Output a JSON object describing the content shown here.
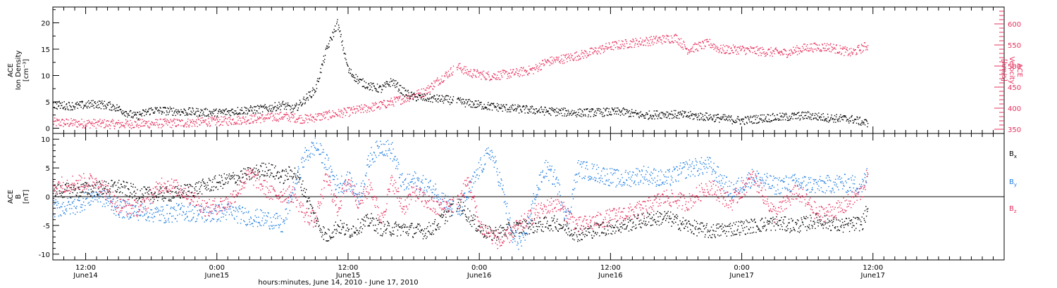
{
  "figure": {
    "xlabel": "hours:minutes, June 14, 2010 - June 17, 2010",
    "time_range_hours": [
      -3,
      84
    ],
    "time_ticks": [
      {
        "hours": 0,
        "time": "12:00",
        "date": "June14"
      },
      {
        "hours": 12,
        "time": "0:00",
        "date": "June15"
      },
      {
        "hours": 24,
        "time": "12:00",
        "date": "June15"
      },
      {
        "hours": 36,
        "time": "0:00",
        "date": "June16"
      },
      {
        "hours": 48,
        "time": "12:00",
        "date": "June16"
      },
      {
        "hours": 60,
        "time": "0:00",
        "date": "June17"
      },
      {
        "hours": 72,
        "time": "12:00",
        "date": "June17"
      }
    ]
  },
  "chart_data": [
    {
      "type": "scatter",
      "panel": "top",
      "ylabel_left": [
        "ACE",
        "Ion Density",
        "[cm⁻³]"
      ],
      "ylabel_right": [
        "ACE",
        "Velocity",
        "[km/s]"
      ],
      "ylim_left": [
        -1,
        23
      ],
      "ylim_right": [
        340,
        640
      ],
      "yticks_left": [
        0,
        5,
        10,
        15,
        20
      ],
      "yticks_right": [
        350,
        400,
        450,
        500,
        550,
        600
      ],
      "colors": {
        "density": "#000000",
        "velocity": "#e8305e"
      },
      "series": [
        {
          "key": "density",
          "axis": "left",
          "points": [
            [
              -3,
              4.5
            ],
            [
              -1,
              4.3
            ],
            [
              1,
              4.7
            ],
            [
              2.5,
              4.2
            ],
            [
              4.5,
              2.3
            ],
            [
              6,
              3.5
            ],
            [
              9,
              3.2
            ],
            [
              12,
              3.0
            ],
            [
              14,
              3.4
            ],
            [
              16,
              3.7
            ],
            [
              17,
              4.0
            ],
            [
              18,
              4.5
            ],
            [
              19,
              3.6
            ],
            [
              20,
              5.5
            ],
            [
              21,
              7.5
            ],
            [
              22,
              15.0
            ],
            [
              23,
              20.0
            ],
            [
              24,
              11.0
            ],
            [
              25,
              9.0
            ],
            [
              26,
              8.0
            ],
            [
              27,
              7.5
            ],
            [
              28,
              9.0
            ],
            [
              29,
              7.0
            ],
            [
              30,
              6.0
            ],
            [
              33,
              5.5
            ],
            [
              35,
              4.8
            ],
            [
              37,
              4.2
            ],
            [
              39,
              3.8
            ],
            [
              41,
              3.5
            ],
            [
              43,
              3.2
            ],
            [
              45,
              3.0
            ],
            [
              47,
              3.1
            ],
            [
              49,
              3.2
            ],
            [
              51,
              2.5
            ],
            [
              53,
              2.8
            ],
            [
              55,
              2.5
            ],
            [
              57,
              2.2
            ],
            [
              60,
              1.5
            ],
            [
              62,
              2.0
            ],
            [
              64,
              2.2
            ],
            [
              66,
              2.5
            ],
            [
              68,
              2.0
            ],
            [
              70,
              1.8
            ],
            [
              71.5,
              1.0
            ]
          ]
        },
        {
          "key": "velocity",
          "axis": "right",
          "points": [
            [
              -3,
              367
            ],
            [
              3,
              363
            ],
            [
              9,
              366
            ],
            [
              13,
              371
            ],
            [
              16,
              377
            ],
            [
              18,
              382
            ],
            [
              20,
              375
            ],
            [
              22,
              384
            ],
            [
              24,
              392
            ],
            [
              27,
              408
            ],
            [
              29,
              423
            ],
            [
              31,
              440
            ],
            [
              32,
              462
            ],
            [
              34,
              500
            ],
            [
              35,
              485
            ],
            [
              37,
              477
            ],
            [
              39,
              483
            ],
            [
              41,
              493
            ],
            [
              42,
              510
            ],
            [
              44,
              520
            ],
            [
              46,
              532
            ],
            [
              48,
              548
            ],
            [
              50,
              556
            ],
            [
              52,
              562
            ],
            [
              54,
              568
            ],
            [
              55,
              540
            ],
            [
              57,
              555
            ],
            [
              58,
              540
            ],
            [
              60,
              540
            ],
            [
              62,
              535
            ],
            [
              64,
              532
            ],
            [
              66,
              545
            ],
            [
              68,
              546
            ],
            [
              70,
              532
            ],
            [
              71.5,
              550
            ]
          ]
        }
      ]
    },
    {
      "type": "scatter",
      "panel": "bottom",
      "ylabel_left": [
        "ACE",
        "B",
        "[nT]"
      ],
      "ylim": [
        -11,
        11
      ],
      "yticks": [
        -10,
        -5,
        0,
        5,
        10
      ],
      "legend": [
        "Bx",
        "By",
        "Bz"
      ],
      "colors": {
        "Bx": "#000000",
        "By": "#1e7de0",
        "Bz": "#e8305e"
      },
      "series": [
        {
          "key": "Bx",
          "points": [
            [
              -3,
              1.0
            ],
            [
              1,
              1.5
            ],
            [
              3,
              1.8
            ],
            [
              5,
              0.5
            ],
            [
              8,
              0.5
            ],
            [
              11,
              2.0
            ],
            [
              13,
              3.0
            ],
            [
              15,
              4.0
            ],
            [
              16.5,
              5.0
            ],
            [
              18,
              3.5
            ],
            [
              19,
              4.5
            ],
            [
              20,
              1.0
            ],
            [
              21,
              -4.0
            ],
            [
              22,
              -7.0
            ],
            [
              23,
              -5.0
            ],
            [
              24,
              -6.0
            ],
            [
              25,
              -5.0
            ],
            [
              26,
              -4.0
            ],
            [
              27,
              -5.5
            ],
            [
              29,
              -5.5
            ],
            [
              31,
              -6.0
            ],
            [
              32,
              -5.0
            ],
            [
              34,
              -1.0
            ],
            [
              36,
              -5.5
            ],
            [
              37,
              -6.5
            ],
            [
              39,
              -5.5
            ],
            [
              41,
              -5.0
            ],
            [
              43,
              -4.5
            ],
            [
              45,
              -6.5
            ],
            [
              47,
              -5.5
            ],
            [
              49,
              -5.0
            ],
            [
              51,
              -4.0
            ],
            [
              53,
              -3.5
            ],
            [
              55,
              -5.0
            ],
            [
              57,
              -6.0
            ],
            [
              59,
              -5.5
            ],
            [
              61,
              -5.0
            ],
            [
              63,
              -4.5
            ],
            [
              65,
              -5.0
            ],
            [
              67,
              -4.0
            ],
            [
              69,
              -5.0
            ],
            [
              71,
              -4.5
            ],
            [
              71.5,
              -2.0
            ]
          ]
        },
        {
          "key": "By",
          "points": [
            [
              -3,
              -2.0
            ],
            [
              -1,
              -1.5
            ],
            [
              1,
              0.5
            ],
            [
              3,
              -2.0
            ],
            [
              5,
              -2.5
            ],
            [
              7,
              -3.0
            ],
            [
              9,
              -2.5
            ],
            [
              11,
              -3.0
            ],
            [
              13,
              -2.5
            ],
            [
              15,
              -3.5
            ],
            [
              17,
              -4.0
            ],
            [
              18,
              -5.0
            ],
            [
              19,
              1.5
            ],
            [
              20,
              7.0
            ],
            [
              21,
              9.0
            ],
            [
              22,
              6.0
            ],
            [
              23,
              2.0
            ],
            [
              24,
              3.0
            ],
            [
              25,
              0.0
            ],
            [
              26,
              7.0
            ],
            [
              27,
              9.0
            ],
            [
              28,
              8.0
            ],
            [
              29,
              2.0
            ],
            [
              30,
              3.0
            ],
            [
              32,
              1.0
            ],
            [
              34,
              -3.0
            ],
            [
              36,
              5.0
            ],
            [
              37,
              8.0
            ],
            [
              38,
              2.0
            ],
            [
              39,
              -7.0
            ],
            [
              40,
              -8.0
            ],
            [
              41,
              0.0
            ],
            [
              42,
              5.0
            ],
            [
              43,
              3.0
            ],
            [
              44,
              -4.0
            ],
            [
              45,
              5.0
            ],
            [
              47,
              4.0
            ],
            [
              49,
              3.0
            ],
            [
              51,
              4.0
            ],
            [
              53,
              3.0
            ],
            [
              55,
              5.0
            ],
            [
              57,
              5.5
            ],
            [
              59,
              1.0
            ],
            [
              61,
              3.5
            ],
            [
              63,
              2.0
            ],
            [
              65,
              2.5
            ],
            [
              67,
              2.0
            ],
            [
              69,
              2.5
            ],
            [
              71,
              2.0
            ],
            [
              71.5,
              4.0
            ]
          ]
        },
        {
          "key": "Bz",
          "points": [
            [
              -3,
              2.0
            ],
            [
              -1,
              2.5
            ],
            [
              1,
              2.8
            ],
            [
              3,
              -1.5
            ],
            [
              5,
              -2.0
            ],
            [
              7,
              2.5
            ],
            [
              9,
              1.0
            ],
            [
              11,
              -2.0
            ],
            [
              13,
              -1.0
            ],
            [
              15,
              4.0
            ],
            [
              17,
              0.5
            ],
            [
              19,
              0.5
            ],
            [
              20,
              -3.0
            ],
            [
              21,
              -4.0
            ],
            [
              22,
              3.5
            ],
            [
              23,
              -2.0
            ],
            [
              24,
              3.0
            ],
            [
              25,
              -1.0
            ],
            [
              26,
              2.0
            ],
            [
              27,
              -4.0
            ],
            [
              28,
              3.0
            ],
            [
              29,
              -2.0
            ],
            [
              30,
              1.0
            ],
            [
              32,
              -2.0
            ],
            [
              34,
              -1.0
            ],
            [
              35,
              3.0
            ],
            [
              36,
              -5.0
            ],
            [
              38,
              -8.0
            ],
            [
              39,
              -6.0
            ],
            [
              41,
              -3.0
            ],
            [
              43,
              -1.0
            ],
            [
              45,
              -5.0
            ],
            [
              47,
              -4.0
            ],
            [
              49,
              -3.0
            ],
            [
              51,
              -2.0
            ],
            [
              53,
              0.0
            ],
            [
              55,
              -1.0
            ],
            [
              57,
              2.0
            ],
            [
              59,
              -1.0
            ],
            [
              61,
              3.5
            ],
            [
              63,
              -3.0
            ],
            [
              65,
              1.0
            ],
            [
              67,
              -3.0
            ],
            [
              69,
              -2.0
            ],
            [
              71,
              1.0
            ],
            [
              71.5,
              4.0
            ]
          ]
        }
      ]
    }
  ]
}
